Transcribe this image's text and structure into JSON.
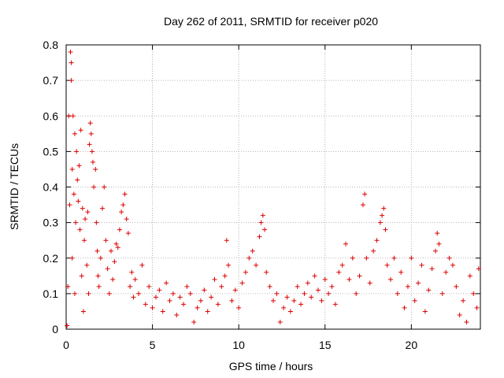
{
  "chart_data": {
    "type": "scatter",
    "title": "Day 262 of 2011, SRMTID for receiver p020",
    "xlabel": "GPS time / hours",
    "ylabel": "SRMTID / TECUs",
    "xlim": [
      0,
      24
    ],
    "ylim": [
      0,
      0.8
    ],
    "xticks": [
      0,
      5,
      10,
      15,
      20
    ],
    "yticks": [
      0,
      0.1,
      0.2,
      0.3,
      0.4,
      0.5,
      0.6,
      0.7,
      0.8
    ],
    "grid": true,
    "marker": "+",
    "color": "#dd0000",
    "series": [
      {
        "name": "SRMTID",
        "points": [
          [
            0.05,
            0.01
          ],
          [
            0.1,
            0.12
          ],
          [
            0.15,
            0.6
          ],
          [
            0.2,
            0.35
          ],
          [
            0.25,
            0.78
          ],
          [
            0.3,
            0.75
          ],
          [
            0.3,
            0.7
          ],
          [
            0.35,
            0.45
          ],
          [
            0.35,
            0.2
          ],
          [
            0.4,
            0.6
          ],
          [
            0.45,
            0.38
          ],
          [
            0.5,
            0.55
          ],
          [
            0.5,
            0.1
          ],
          [
            0.55,
            0.3
          ],
          [
            0.6,
            0.5
          ],
          [
            0.65,
            0.42
          ],
          [
            0.7,
            0.36
          ],
          [
            0.75,
            0.46
          ],
          [
            0.8,
            0.28
          ],
          [
            0.85,
            0.56
          ],
          [
            0.9,
            0.15
          ],
          [
            0.95,
            0.34
          ],
          [
            1.0,
            0.05
          ],
          [
            1.05,
            0.25
          ],
          [
            1.1,
            0.31
          ],
          [
            1.2,
            0.18
          ],
          [
            1.25,
            0.33
          ],
          [
            1.3,
            0.1
          ],
          [
            1.35,
            0.52
          ],
          [
            1.4,
            0.58
          ],
          [
            1.45,
            0.55
          ],
          [
            1.5,
            0.5
          ],
          [
            1.55,
            0.47
          ],
          [
            1.6,
            0.4
          ],
          [
            1.7,
            0.45
          ],
          [
            1.75,
            0.3
          ],
          [
            1.8,
            0.22
          ],
          [
            1.85,
            0.15
          ],
          [
            1.9,
            0.12
          ],
          [
            2.0,
            0.2
          ],
          [
            2.1,
            0.34
          ],
          [
            2.2,
            0.4
          ],
          [
            2.3,
            0.25
          ],
          [
            2.4,
            0.17
          ],
          [
            2.5,
            0.1
          ],
          [
            2.6,
            0.22
          ],
          [
            2.7,
            0.14
          ],
          [
            2.8,
            0.19
          ],
          [
            2.9,
            0.24
          ],
          [
            3.0,
            0.23
          ],
          [
            3.1,
            0.28
          ],
          [
            3.2,
            0.33
          ],
          [
            3.3,
            0.35
          ],
          [
            3.4,
            0.38
          ],
          [
            3.5,
            0.31
          ],
          [
            3.6,
            0.27
          ],
          [
            3.7,
            0.12
          ],
          [
            3.8,
            0.16
          ],
          [
            3.9,
            0.09
          ],
          [
            4.0,
            0.14
          ],
          [
            4.2,
            0.1
          ],
          [
            4.4,
            0.18
          ],
          [
            4.6,
            0.07
          ],
          [
            4.8,
            0.12
          ],
          [
            5.0,
            0.06
          ],
          [
            5.2,
            0.09
          ],
          [
            5.4,
            0.11
          ],
          [
            5.6,
            0.05
          ],
          [
            5.8,
            0.13
          ],
          [
            6.0,
            0.08
          ],
          [
            6.2,
            0.1
          ],
          [
            6.4,
            0.04
          ],
          [
            6.6,
            0.09
          ],
          [
            6.8,
            0.07
          ],
          [
            7.0,
            0.12
          ],
          [
            7.2,
            0.1
          ],
          [
            7.4,
            0.02
          ],
          [
            7.6,
            0.06
          ],
          [
            7.8,
            0.08
          ],
          [
            8.0,
            0.11
          ],
          [
            8.2,
            0.05
          ],
          [
            8.4,
            0.09
          ],
          [
            8.6,
            0.14
          ],
          [
            8.8,
            0.07
          ],
          [
            9.0,
            0.12
          ],
          [
            9.2,
            0.15
          ],
          [
            9.3,
            0.25
          ],
          [
            9.4,
            0.18
          ],
          [
            9.6,
            0.08
          ],
          [
            9.8,
            0.11
          ],
          [
            10.0,
            0.06
          ],
          [
            10.2,
            0.13
          ],
          [
            10.4,
            0.16
          ],
          [
            10.6,
            0.2
          ],
          [
            10.8,
            0.22
          ],
          [
            11.0,
            0.18
          ],
          [
            11.2,
            0.26
          ],
          [
            11.3,
            0.3
          ],
          [
            11.4,
            0.32
          ],
          [
            11.5,
            0.28
          ],
          [
            11.6,
            0.16
          ],
          [
            11.8,
            0.12
          ],
          [
            12.0,
            0.08
          ],
          [
            12.2,
            0.1
          ],
          [
            12.4,
            0.02
          ],
          [
            12.6,
            0.06
          ],
          [
            12.8,
            0.09
          ],
          [
            13.0,
            0.05
          ],
          [
            13.2,
            0.08
          ],
          [
            13.4,
            0.12
          ],
          [
            13.6,
            0.07
          ],
          [
            13.8,
            0.1
          ],
          [
            14.0,
            0.13
          ],
          [
            14.2,
            0.09
          ],
          [
            14.4,
            0.15
          ],
          [
            14.6,
            0.11
          ],
          [
            14.8,
            0.08
          ],
          [
            15.0,
            0.14
          ],
          [
            15.2,
            0.1
          ],
          [
            15.4,
            0.12
          ],
          [
            15.6,
            0.07
          ],
          [
            15.8,
            0.16
          ],
          [
            16.0,
            0.18
          ],
          [
            16.2,
            0.24
          ],
          [
            16.4,
            0.14
          ],
          [
            16.6,
            0.2
          ],
          [
            16.8,
            0.1
          ],
          [
            17.0,
            0.15
          ],
          [
            17.2,
            0.35
          ],
          [
            17.3,
            0.38
          ],
          [
            17.4,
            0.2
          ],
          [
            17.6,
            0.13
          ],
          [
            17.8,
            0.22
          ],
          [
            18.0,
            0.25
          ],
          [
            18.2,
            0.3
          ],
          [
            18.3,
            0.32
          ],
          [
            18.4,
            0.34
          ],
          [
            18.5,
            0.28
          ],
          [
            18.6,
            0.18
          ],
          [
            18.8,
            0.14
          ],
          [
            19.0,
            0.2
          ],
          [
            19.2,
            0.1
          ],
          [
            19.4,
            0.16
          ],
          [
            19.6,
            0.06
          ],
          [
            19.8,
            0.12
          ],
          [
            20.0,
            0.2
          ],
          [
            20.2,
            0.08
          ],
          [
            20.4,
            0.13
          ],
          [
            20.6,
            0.18
          ],
          [
            20.8,
            0.05
          ],
          [
            21.0,
            0.11
          ],
          [
            21.2,
            0.17
          ],
          [
            21.4,
            0.22
          ],
          [
            21.5,
            0.27
          ],
          [
            21.6,
            0.24
          ],
          [
            21.8,
            0.1
          ],
          [
            22.0,
            0.16
          ],
          [
            22.2,
            0.2
          ],
          [
            22.4,
            0.18
          ],
          [
            22.6,
            0.12
          ],
          [
            22.8,
            0.04
          ],
          [
            23.0,
            0.08
          ],
          [
            23.2,
            0.02
          ],
          [
            23.4,
            0.15
          ],
          [
            23.6,
            0.1
          ],
          [
            23.8,
            0.06
          ],
          [
            23.9,
            0.17
          ]
        ]
      }
    ]
  }
}
